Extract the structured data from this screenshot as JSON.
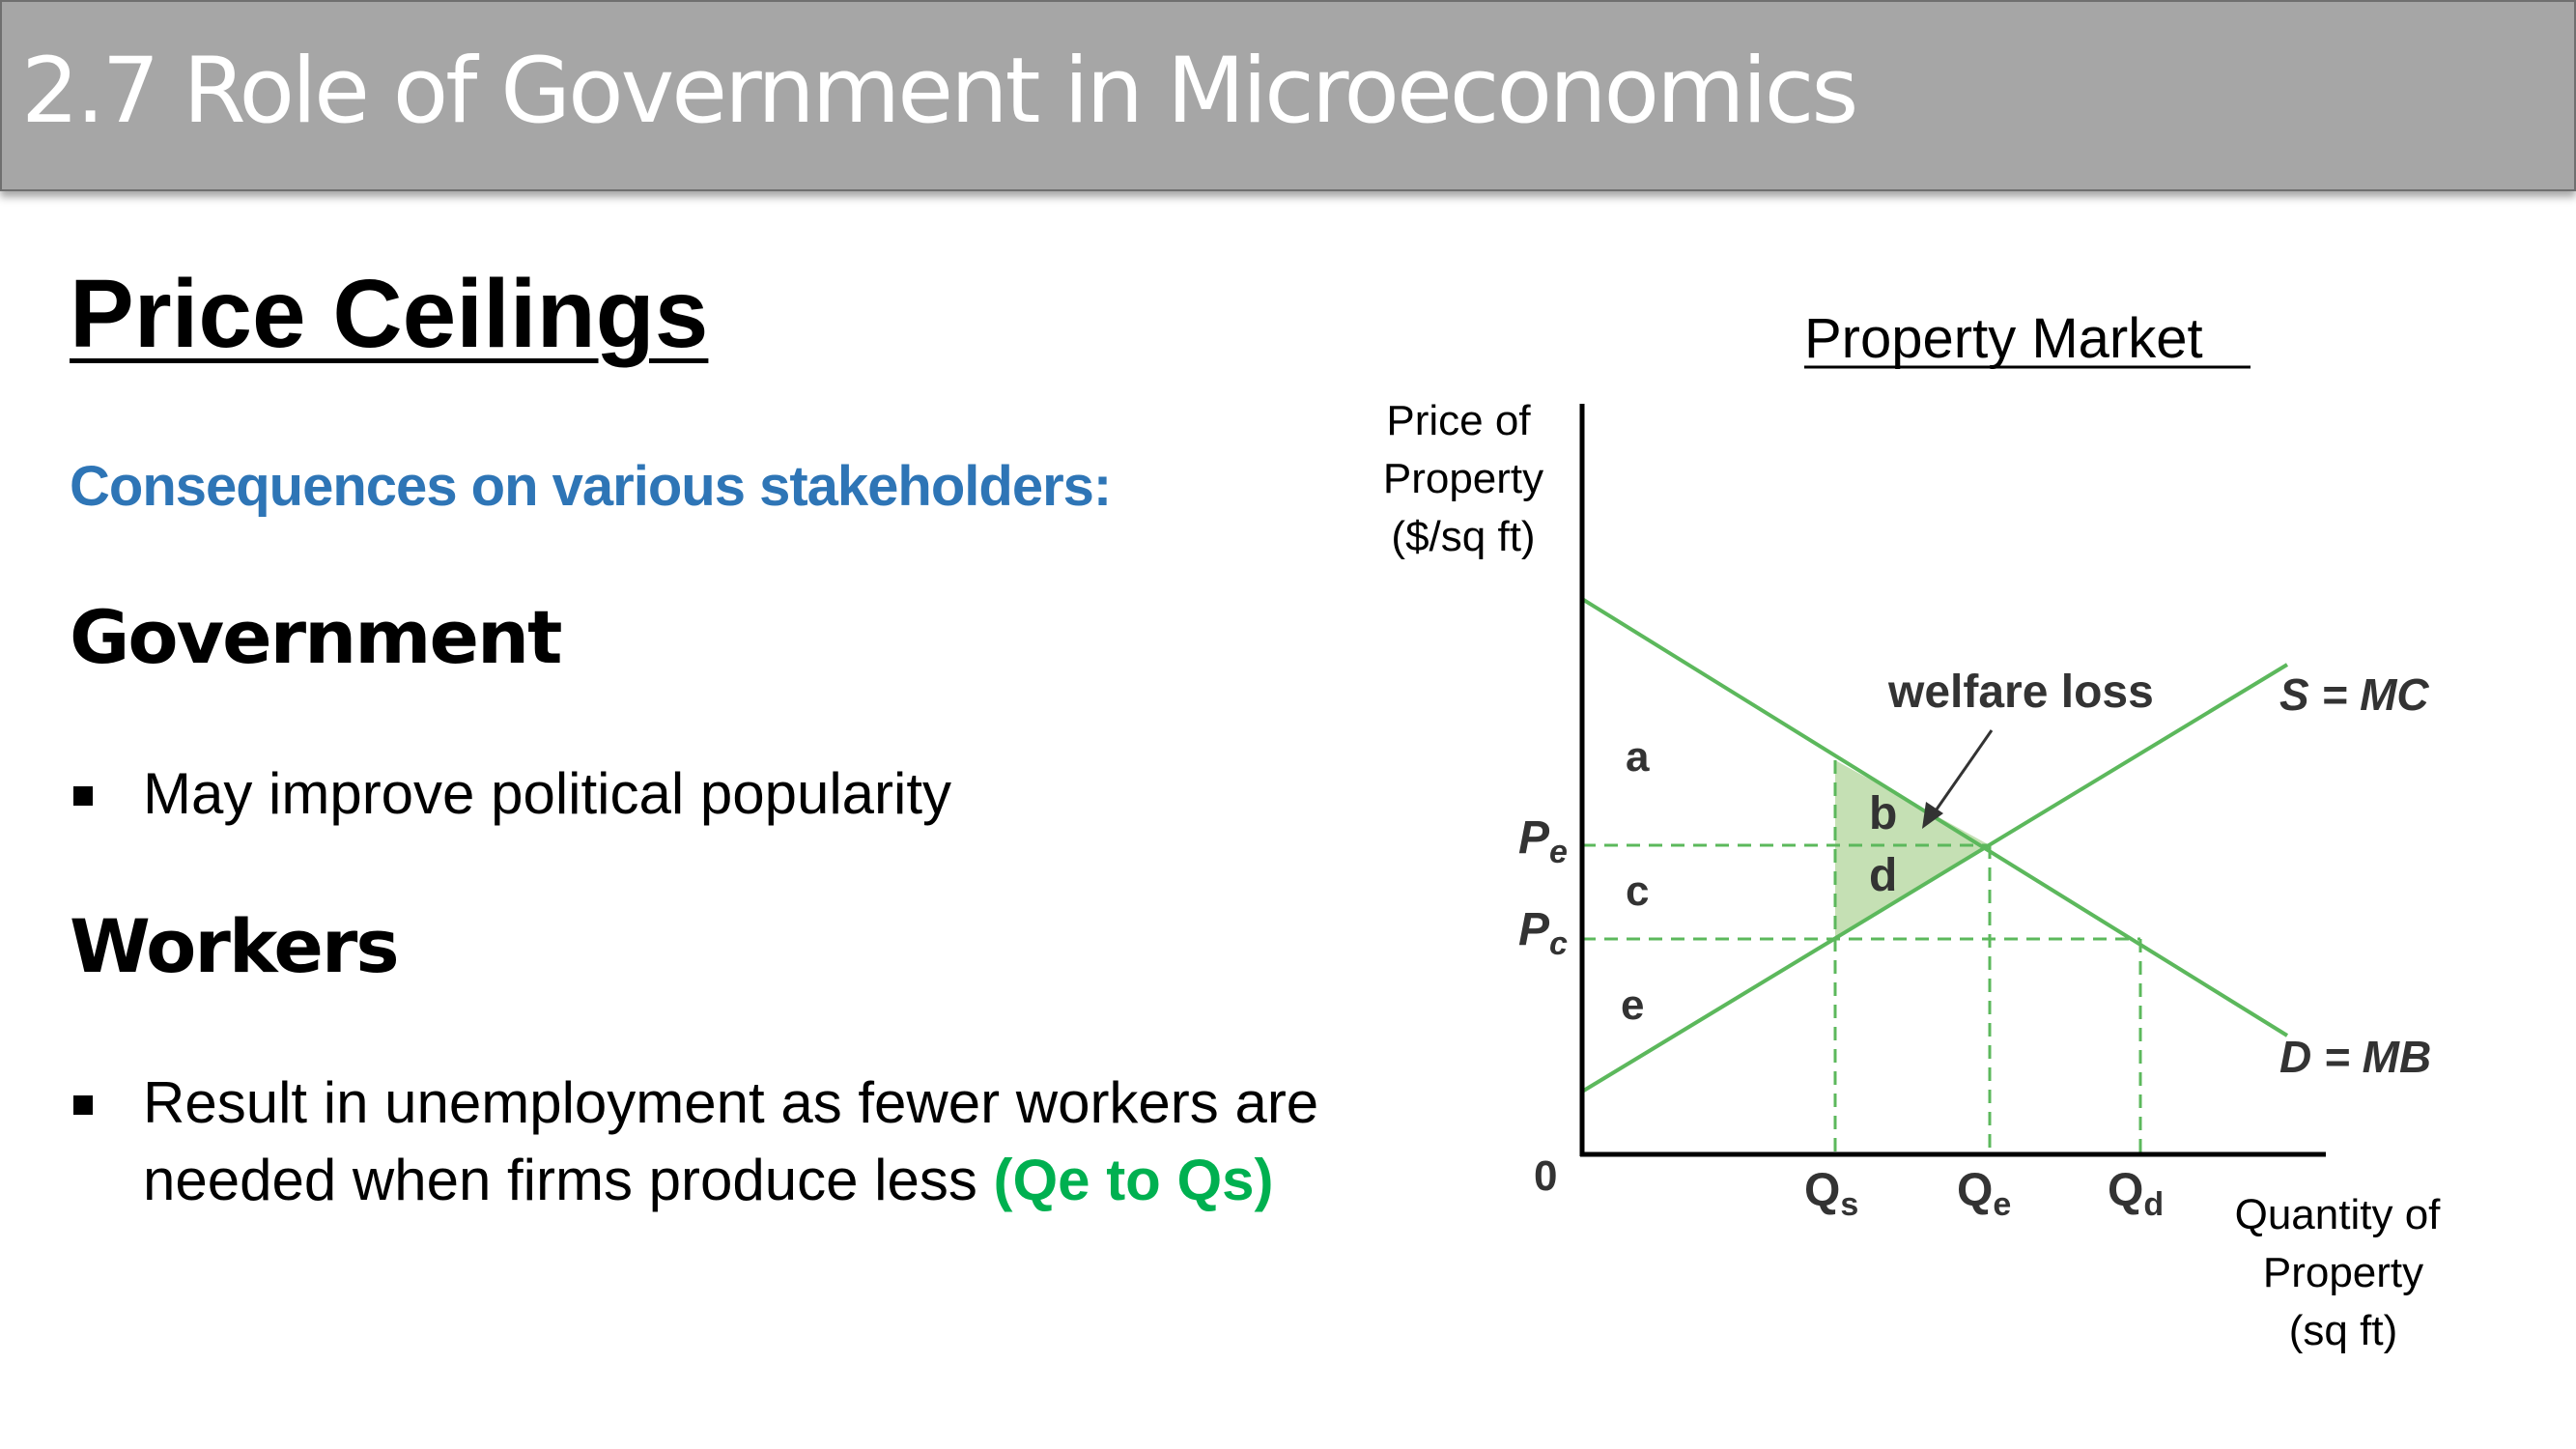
{
  "slide": {
    "title": "2.7 Role of Government in Microeconomics",
    "heading": "Price Ceilings",
    "subheading": "Consequences on various stakeholders:",
    "sections": [
      {
        "title": "Government",
        "bullets": [
          "May improve political popularity"
        ]
      },
      {
        "title": "Workers",
        "bullet_line1": "Result in unemployment as fewer workers are",
        "bullet_line2_text": "needed when firms produce less ",
        "bullet_line2_highlight": "(Qe to Qs)"
      }
    ],
    "colors": {
      "title_bar": "#a6a6a6",
      "subheading": "#2e75b6",
      "highlight": "#00b050",
      "curve": "#5cb85c",
      "welfare_fill": "#c5e0b4"
    }
  },
  "diagram": {
    "title": "Property  Market",
    "y_axis_label": [
      "Price of",
      "Property",
      "($/sq ft)"
    ],
    "x_axis_label": [
      "Quantity of",
      "Property",
      "(sq ft)"
    ],
    "origin": "0",
    "supply_label": "S = MC",
    "demand_label": "D = MB",
    "welfare_loss_label": "welfare loss",
    "areas": {
      "a": "a",
      "b": "b",
      "c": "c",
      "d": "d",
      "e": "e"
    },
    "price_labels": {
      "pe": "P",
      "pe_sub": "e",
      "pc": "P",
      "pc_sub": "c"
    },
    "quantity_labels": {
      "qs": "Q",
      "qs_sub": "s",
      "qe": "Q",
      "qe_sub": "e",
      "qd": "Q",
      "qd_sub": "d"
    }
  }
}
